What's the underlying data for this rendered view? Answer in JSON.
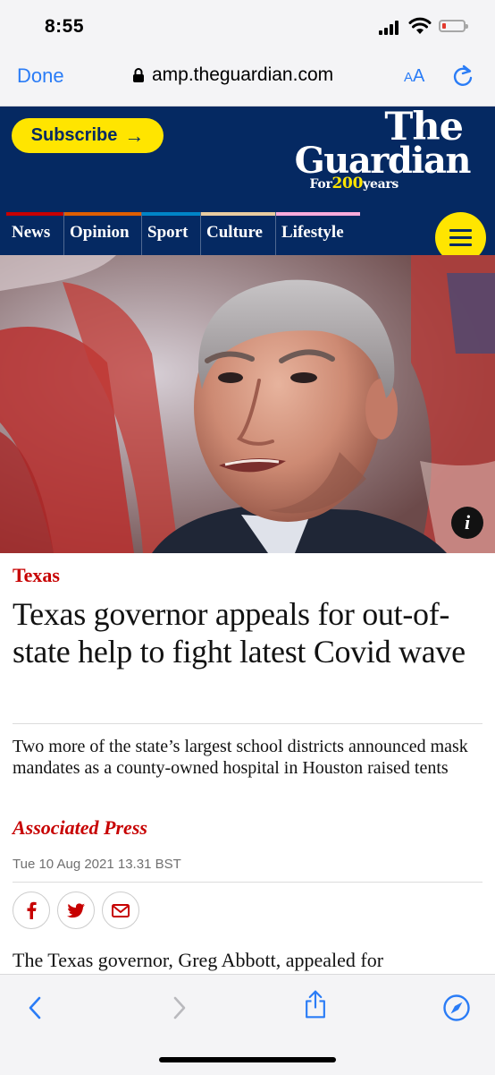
{
  "status_bar": {
    "time": "8:55"
  },
  "browser": {
    "done_label": "Done",
    "url": "amp.theguardian.com",
    "text_size_label_small": "A",
    "text_size_label_large": "A"
  },
  "masthead": {
    "subscribe_label": "Subscribe",
    "subscribe_arrow": "→",
    "logo_line1": "The",
    "logo_line2": "Guardian",
    "tagline_prefix": "For",
    "tagline_number": "200",
    "tagline_suffix": "years"
  },
  "nav": {
    "pillars": [
      {
        "label": "News",
        "color": "#c70000"
      },
      {
        "label": "Opinion",
        "color": "#e05e00"
      },
      {
        "label": "Sport",
        "color": "#0084c6"
      },
      {
        "label": "Culture",
        "color": "#eacca0"
      },
      {
        "label": "Lifestyle",
        "color": "#ffabdb"
      }
    ]
  },
  "hero": {
    "info_label": "i"
  },
  "article": {
    "kicker": "Texas",
    "headline": "Texas governor appeals for out-of-state help to fight latest Covid wave",
    "standfirst": "Two more of the state’s largest school districts announced mask mandates as a county-owned hospital in Houston raised tents",
    "byline": "Associated Press",
    "dateline": "Tue 10 Aug 2021 13.31 BST",
    "body_first_line": "The Texas governor, Greg Abbott, appealed for"
  },
  "share": {
    "icons": [
      "facebook-icon",
      "twitter-icon",
      "email-icon"
    ]
  },
  "colors": {
    "guardian_blue": "#052962",
    "guardian_yellow": "#ffe500",
    "news_red": "#c70000",
    "ios_blue": "#2a7cf6"
  }
}
